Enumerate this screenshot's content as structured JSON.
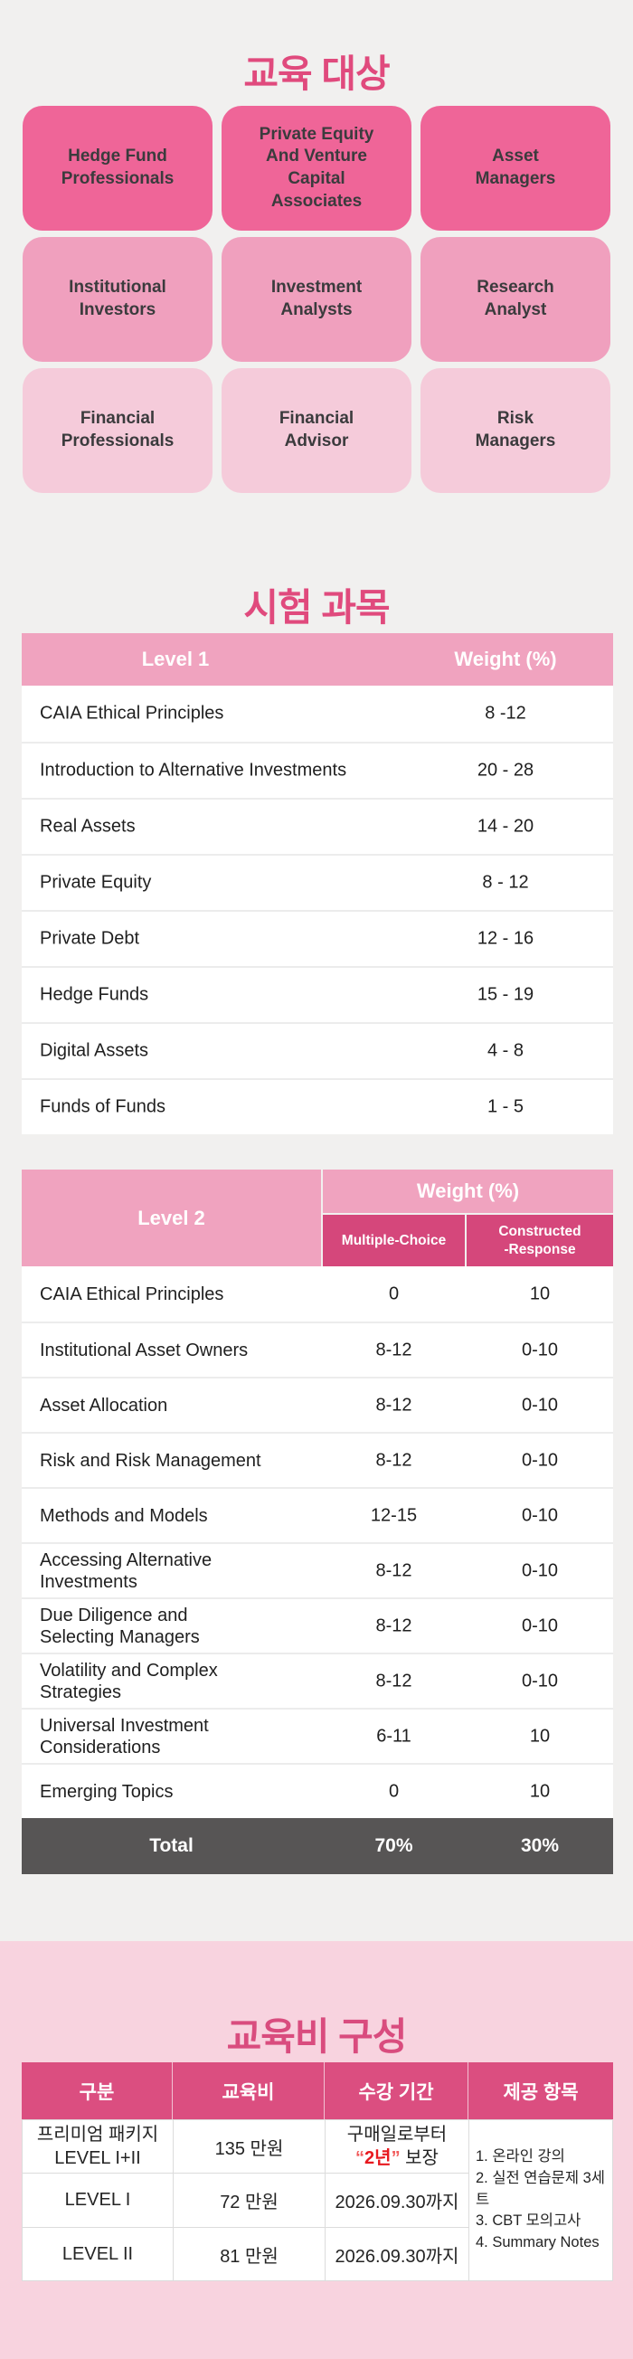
{
  "colors": {
    "page_bg": "#F1F0EF",
    "accent_title_pink": "#E04A7D",
    "tier1_box": "#EF6598",
    "tier2_box": "#F0A0BE",
    "tier3_box": "#F5CBDA",
    "table_header_pink": "#F0A3BF",
    "table_subheader_dark_pink": "#D5477B",
    "total_row_gray": "#575555",
    "fee_section_bg": "#F8D3DF",
    "fee_header_pink": "#DB4E80",
    "fee_title_pink": "#D94C7E",
    "highlight_red": "#E8191F"
  },
  "audience": {
    "title": "교육 대상",
    "boxes": [
      {
        "label": "Hedge Fund\nProfessionals"
      },
      {
        "label": "Private Equity\nAnd Venture\nCapital\nAssociates"
      },
      {
        "label": "Asset\nManagers"
      },
      {
        "label": "Institutional\nInvestors"
      },
      {
        "label": "Investment\nAnalysts"
      },
      {
        "label": "Research\nAnalyst"
      },
      {
        "label": "Financial\nProfessionals"
      },
      {
        "label": "Financial\nAdvisor"
      },
      {
        "label": "Risk\nManagers"
      }
    ]
  },
  "subjects": {
    "title": "시험 과목",
    "level1": {
      "header": {
        "level": "Level 1",
        "weight": "Weight (%)"
      },
      "rows": [
        {
          "subject": "CAIA Ethical Principles",
          "weight": "8 -12"
        },
        {
          "subject": "Introduction to Alternative Investments",
          "weight": "20 - 28"
        },
        {
          "subject": "Real Assets",
          "weight": "14 - 20"
        },
        {
          "subject": "Private Equity",
          "weight": "8 - 12"
        },
        {
          "subject": "Private Debt",
          "weight": "12 - 16"
        },
        {
          "subject": "Hedge Funds",
          "weight": "15 - 19"
        },
        {
          "subject": "Digital Assets",
          "weight": "4 - 8"
        },
        {
          "subject": "Funds of Funds",
          "weight": "1 - 5"
        }
      ]
    },
    "level2": {
      "header": {
        "level": "Level 2",
        "weight": "Weight (%)",
        "multiple_choice": "Multiple-Choice",
        "constructed_response": "Constructed\n-Response"
      },
      "rows": [
        {
          "subject": "CAIA Ethical Principles",
          "mc": "0",
          "cr": "10"
        },
        {
          "subject": "Institutional Asset Owners",
          "mc": "8-12",
          "cr": "0-10"
        },
        {
          "subject": "Asset Allocation",
          "mc": "8-12",
          "cr": "0-10"
        },
        {
          "subject": "Risk and Risk Management",
          "mc": "8-12",
          "cr": "0-10"
        },
        {
          "subject": "Methods and Models",
          "mc": "12-15",
          "cr": "0-10"
        },
        {
          "subject": "Accessing Alternative\nInvestments",
          "mc": "8-12",
          "cr": "0-10"
        },
        {
          "subject": "Due Diligence and\nSelecting Managers",
          "mc": "8-12",
          "cr": "0-10"
        },
        {
          "subject": "Volatility and Complex\nStrategies",
          "mc": "8-12",
          "cr": "0-10"
        },
        {
          "subject": "Universal Investment\nConsiderations",
          "mc": "6-11",
          "cr": "10"
        },
        {
          "subject": "Emerging Topics",
          "mc": "0",
          "cr": "10"
        }
      ],
      "total": {
        "label": "Total",
        "mc": "70%",
        "cr": "30%"
      }
    }
  },
  "fees": {
    "title": "교육비 구성",
    "headers": [
      "구분",
      "교육비",
      "수강 기간",
      "제공 항목"
    ],
    "rows": [
      {
        "category": "프리미엄 패키지\nLEVEL I+II",
        "price": "135 만원",
        "period_line1": "구매일로부터",
        "period_quote_open": "“",
        "period_red": "2년",
        "period_quote_close": "”",
        "period_suffix": " 보장"
      },
      {
        "category": "LEVEL I",
        "price": "72 만원",
        "period": "2026.09.30까지"
      },
      {
        "category": "LEVEL II",
        "price": "81 만원",
        "period": "2026.09.30까지"
      }
    ],
    "provided_items": [
      "1. 온라인 강의",
      "2. 실전 연습문제 3세트",
      "3. CBT 모의고사",
      "4. Summary Notes"
    ]
  }
}
